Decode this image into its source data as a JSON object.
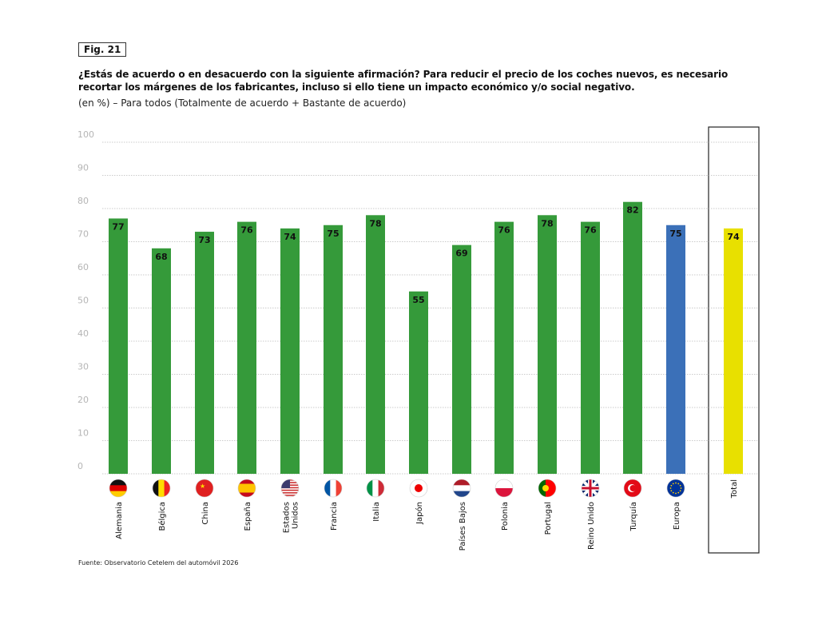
{
  "figure_label": "Fig. 21",
  "title": "¿Estás de acuerdo o en desacuerdo con la siguiente afirmación? Para reducir el precio de los coches nuevos, es necesario recortar los márgenes de los fabricantes, incluso si ello tiene un impacto económico y/o social negativo.",
  "subtitle": "(en %) – Para todos (Totalmente de acuerdo + Bastante de acuerdo)",
  "source": "Fuente: Observatorio Cetelem del automóvil 2026",
  "colors": {
    "country": "#359a3a",
    "europe": "#3b70b8",
    "total": "#e8e000",
    "grid": "#bbbbbb",
    "tick": "#b5b5b5"
  },
  "chart_data": {
    "type": "bar",
    "title": "¿Estás de acuerdo o en desacuerdo con la siguiente afirmación?",
    "xlabel": "",
    "ylabel": "%",
    "ylim": [
      0,
      100
    ],
    "yticks": [
      0,
      10,
      20,
      30,
      40,
      50,
      60,
      70,
      80,
      90,
      100
    ],
    "grid": true,
    "categories": [
      "Alemania",
      "Bélgica",
      "China",
      "España",
      "Estados Unidos",
      "Francia",
      "Italia",
      "Japón",
      "Países Bajos",
      "Polonia",
      "Portugal",
      "Reino Unido",
      "Turquía",
      "Europa",
      "Total"
    ],
    "label_lines": [
      [
        "Alemania"
      ],
      [
        "Bélgica"
      ],
      [
        "China"
      ],
      [
        "España"
      ],
      [
        "Estados",
        "Unidos"
      ],
      [
        "Francia"
      ],
      [
        "Italia"
      ],
      [
        "Japón"
      ],
      [
        "Países Bajos"
      ],
      [
        "Polonia"
      ],
      [
        "Portugal"
      ],
      [
        "Reino Unido"
      ],
      [
        "Turquía"
      ],
      [
        "Europa"
      ],
      [
        "Total"
      ]
    ],
    "values": [
      77,
      68,
      73,
      76,
      74,
      75,
      78,
      55,
      69,
      76,
      78,
      76,
      82,
      75,
      74
    ],
    "kinds": [
      "country",
      "country",
      "country",
      "country",
      "country",
      "country",
      "country",
      "country",
      "country",
      "country",
      "country",
      "country",
      "country",
      "europe",
      "total"
    ],
    "flags": [
      "de-flag-icon",
      "be-flag-icon",
      "cn-flag-icon",
      "es-flag-icon",
      "us-flag-icon",
      "fr-flag-icon",
      "it-flag-icon",
      "jp-flag-icon",
      "nl-flag-icon",
      "pl-flag-icon",
      "pt-flag-icon",
      "uk-flag-icon",
      "tr-flag-icon",
      "eu-flag-icon",
      null
    ]
  }
}
